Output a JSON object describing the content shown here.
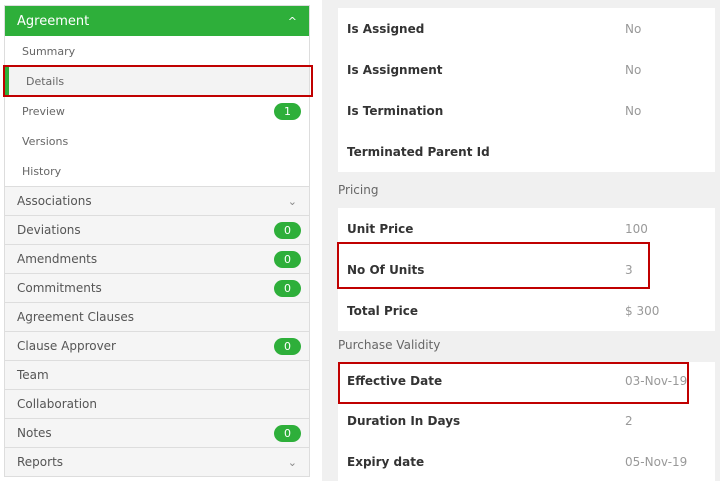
{
  "sidebar": {
    "header": {
      "label": "Agreement",
      "icon": "chevron-up-icon"
    },
    "subitems": [
      {
        "label": "Summary"
      },
      {
        "label": "Details",
        "active": true
      },
      {
        "label": "Preview",
        "badge": "1"
      },
      {
        "label": "Versions"
      },
      {
        "label": "History"
      }
    ],
    "items": [
      {
        "label": "Associations",
        "chevron": "chevron-down-icon"
      },
      {
        "label": "Deviations",
        "badge": "0"
      },
      {
        "label": "Amendments",
        "badge": "0"
      },
      {
        "label": "Commitments",
        "badge": "0"
      },
      {
        "label": "Agreement Clauses"
      },
      {
        "label": "Clause Approver",
        "badge": "0"
      },
      {
        "label": "Team"
      },
      {
        "label": "Collaboration"
      },
      {
        "label": "Notes",
        "badge": "0"
      },
      {
        "label": "Reports",
        "chevron": "chevron-down-icon"
      }
    ]
  },
  "main": {
    "general": [
      {
        "label": "Is Assigned",
        "value": "No"
      },
      {
        "label": "Is Assignment",
        "value": "No"
      },
      {
        "label": "Is Termination",
        "value": "No"
      },
      {
        "label": "Terminated Parent Id",
        "value": ""
      }
    ],
    "pricing": {
      "title": "Pricing",
      "rows": [
        {
          "label": "Unit Price",
          "value": "100"
        },
        {
          "label": "No Of Units",
          "value": "3"
        },
        {
          "label": "Total Price",
          "value": "$ 300"
        }
      ]
    },
    "validity": {
      "title": "Purchase Validity",
      "rows": [
        {
          "label": "Effective Date",
          "value": "03-Nov-19"
        },
        {
          "label": "Duration In Days",
          "value": "2"
        },
        {
          "label": "Expiry date",
          "value": "05-Nov-19"
        }
      ]
    }
  },
  "colors": {
    "accent": "#2eaf3a",
    "highlight": "#c00000"
  }
}
